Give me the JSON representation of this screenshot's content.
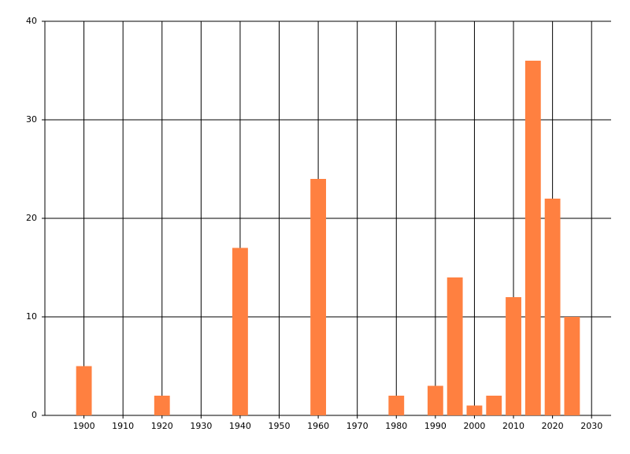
{
  "chart_data": {
    "type": "bar",
    "x": [
      1900,
      1920,
      1940,
      1960,
      1980,
      1990,
      1995,
      2000,
      2005,
      2010,
      2015,
      2020,
      2025
    ],
    "values": [
      5,
      2,
      17,
      24,
      2,
      3,
      14,
      1,
      2,
      12,
      36,
      22,
      10
    ],
    "color": "#ff8040",
    "xlim": [
      1890,
      2035
    ],
    "xticks": [
      1900,
      1910,
      1920,
      1930,
      1940,
      1950,
      1960,
      1970,
      1980,
      1990,
      2000,
      2010,
      2020,
      2030
    ],
    "ylim": [
      0,
      40
    ],
    "yticks": [
      0,
      10,
      20,
      30,
      40
    ],
    "grid": true
  }
}
